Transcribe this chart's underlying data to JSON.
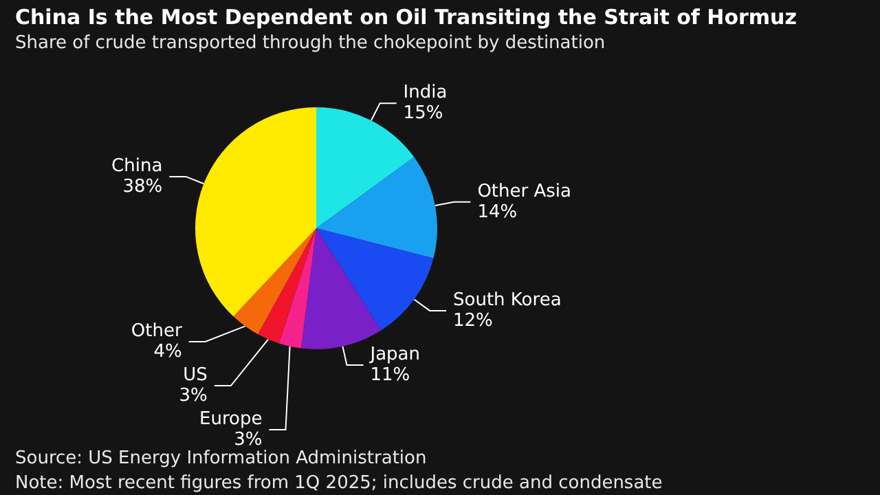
{
  "chart_data": {
    "type": "pie",
    "title": "China Is the Most Dependent on Oil Transiting the Strait of Hormuz",
    "subtitle": "Share of crude transported through the chokepoint by destination",
    "categories": [
      "India",
      "Other Asia",
      "South Korea",
      "Japan",
      "Europe",
      "US",
      "Other",
      "China"
    ],
    "values": [
      15,
      14,
      12,
      11,
      3,
      3,
      4,
      38
    ],
    "value_labels": [
      "15%",
      "14%",
      "12%",
      "11%",
      "3%",
      "3%",
      "4%",
      "38%"
    ],
    "colors": [
      "#1ee6e6",
      "#1aa0f0",
      "#1a4af2",
      "#7a20c8",
      "#f5228c",
      "#f0142d",
      "#f5690a",
      "#ffea00"
    ],
    "annotations": [
      "Source: US Energy Information Administration",
      "Note: Most recent figures from 1Q 2025; includes crude and condensate"
    ],
    "legend": false
  }
}
